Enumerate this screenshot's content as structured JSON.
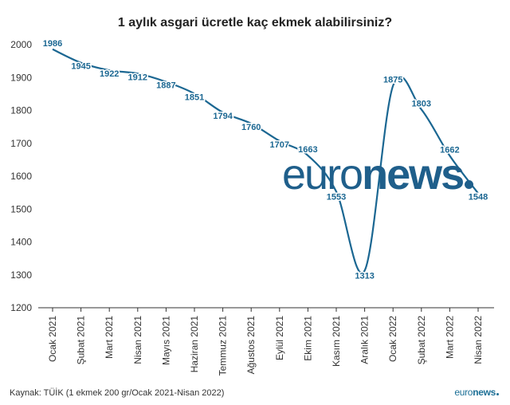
{
  "chart_data": {
    "type": "line",
    "title": "1 aylık asgari ücretle kaç ekmek alabilirsiniz?",
    "categories": [
      "Ocak 2021",
      "Şubat 2021",
      "Mart 2021",
      "Nisan 2021",
      "Mayıs 2021",
      "Haziran 2021",
      "Temmuz 2021",
      "Ağustos 2021",
      "Eylül 2021",
      "Ekim 2021",
      "Kasım 2021",
      "Aralık 2021",
      "Ocak 2022",
      "Şubat 2022",
      "Mart 2022",
      "Nisan 2022"
    ],
    "values": [
      1986,
      1945,
      1922,
      1912,
      1887,
      1851,
      1794,
      1760,
      1707,
      1663,
      1553,
      1313,
      1875,
      1803,
      1662,
      1548
    ],
    "ylim": [
      1200,
      2000
    ],
    "yticks": [
      1200,
      1300,
      1400,
      1500,
      1600,
      1700,
      1800,
      1900,
      2000
    ],
    "xlabel": "",
    "ylabel": "",
    "grid": false,
    "line_color": "#1b6792"
  },
  "source_text": "Kaynak: TÜİK (1 ekmek 200 gr/Ocak 2021-Nisan 2022)",
  "logo": {
    "light": "euro",
    "bold": "news"
  }
}
